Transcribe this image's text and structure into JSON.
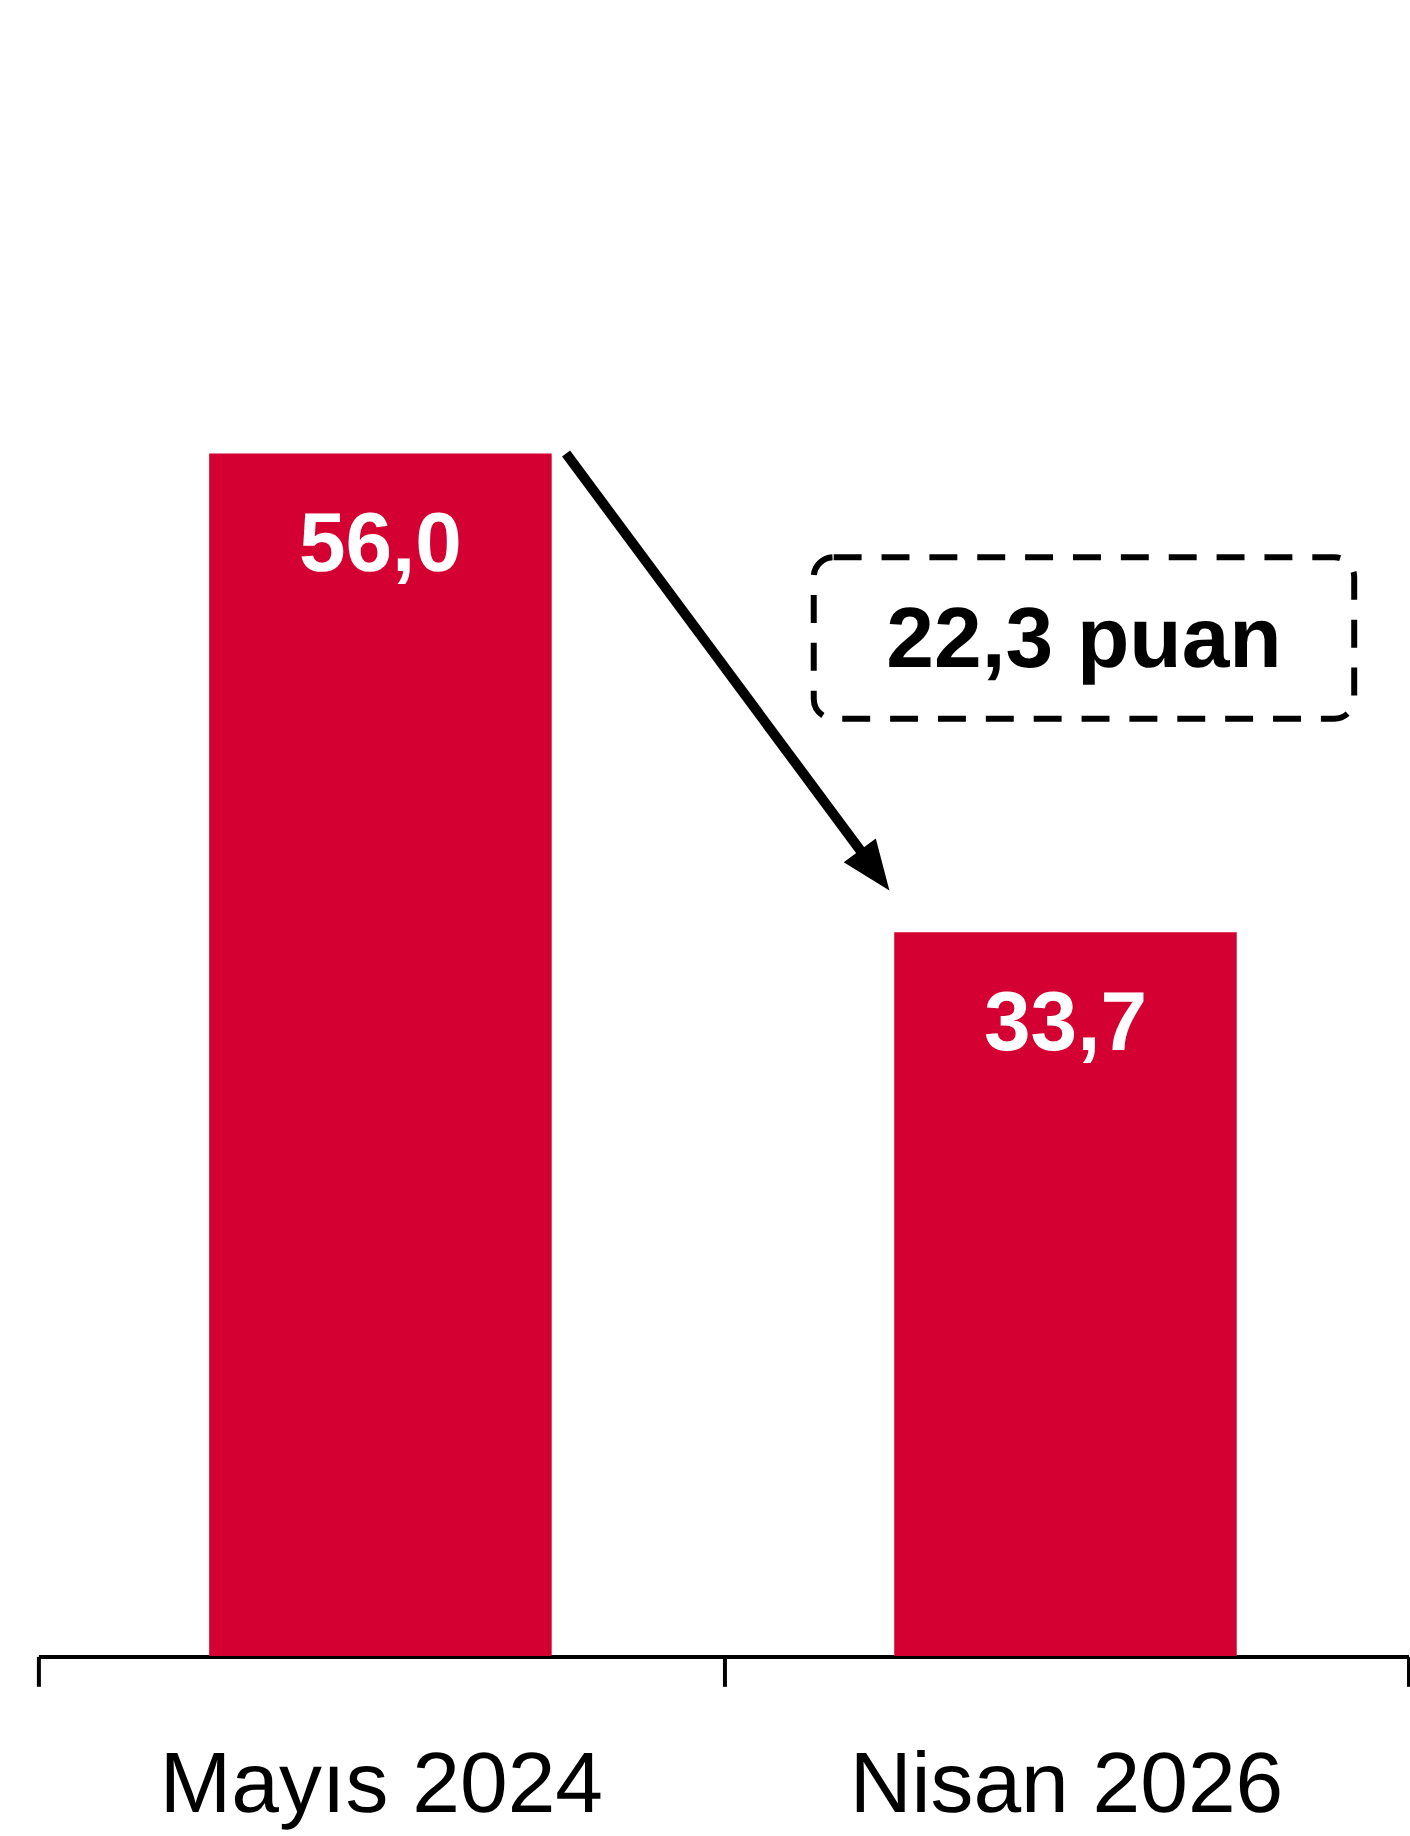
{
  "chart_data": {
    "type": "bar",
    "categories": [
      "Mayıs 2024",
      "Nisan 2026"
    ],
    "values": [
      56.0,
      33.7
    ],
    "color": "#d50032",
    "value_labels": [
      "56,0",
      "33,7"
    ],
    "ylim": [
      0,
      77
    ],
    "annotations": [
      "22,3 puan"
    ],
    "tick_labels": "x"
  }
}
